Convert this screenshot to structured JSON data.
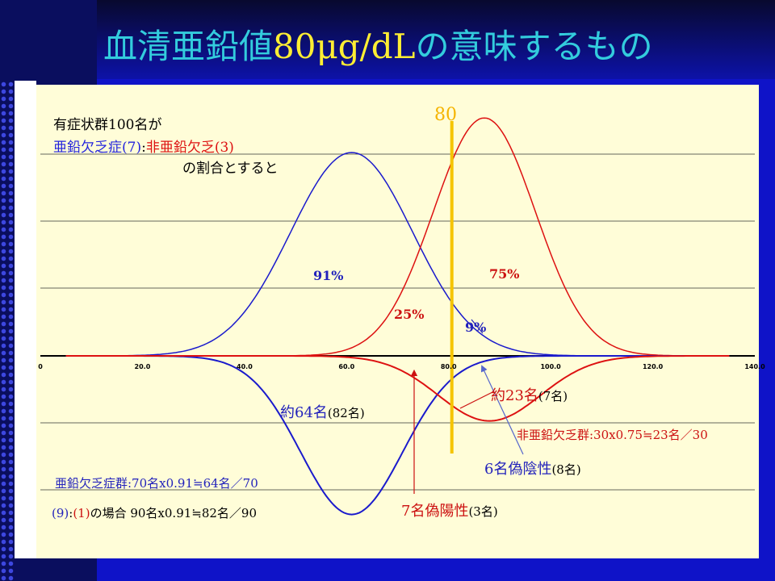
{
  "slide": {
    "title_a": "血清亜鉛値",
    "title_b": "80μg/dL",
    "title_c": "の意味するもの"
  },
  "annotations": {
    "intro_line1": "有症状群100名が",
    "intro_line2_blue": "亜鉛欠乏症(7)",
    "intro_line2_sep": ":",
    "intro_line2_red": "非亜鉛欠乏(3)",
    "intro_line3": "の割合とすると",
    "cutoff_label": "80",
    "pct_91": "91%",
    "pct_75": "75%",
    "pct_25": "25%",
    "pct_9": "9%",
    "red_count": "約23名",
    "red_count_paren": "(7名)",
    "blue_count": "約64名",
    "blue_count_paren": "(82名)",
    "red_calc": "非亜鉛欠乏群:30x0.75≒23名／30",
    "false_negative": "6名偽陰性",
    "false_negative_paren": "(8名)",
    "blue_calc": "亜鉛欠乏症群:70名x0.91≒64名／70",
    "case_blue": "(9)",
    "case_sep": ":",
    "case_red": "(1)",
    "case_text": "の場合 90名x0.91≒82名／90",
    "false_positive": "7名偽陽性",
    "false_positive_paren": "(3名)"
  },
  "chart_data": {
    "type": "line",
    "title": "",
    "xlabel": "",
    "ylabel": "",
    "xlim": [
      0,
      140
    ],
    "x_ticks": [
      "0",
      "20.0",
      "40.0",
      "60.0",
      "80.0",
      "100.0",
      "120.0",
      "140.0"
    ],
    "cutoff_x": 80,
    "series": [
      {
        "color": "#1a1acc",
        "mean": 61,
        "sd": 12,
        "peak": 1.0
      },
      {
        "color": "#dd1111",
        "mean": 87,
        "sd": 10,
        "peak": 1.17
      },
      {
        "color": "#1a1acc",
        "mean": 61,
        "sd": 10,
        "peak": -0.78
      },
      {
        "color": "#dd1111",
        "mean": 88,
        "sd": 10,
        "peak": -0.32
      }
    ],
    "colors": {
      "cutoff": "#f5c400",
      "arrow_red": "#cc1111",
      "arrow_blue": "#5566cc"
    }
  }
}
